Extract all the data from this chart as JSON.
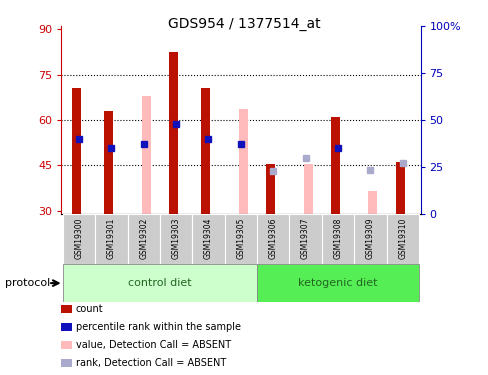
{
  "title": "GDS954 / 1377514_at",
  "samples": [
    "GSM19300",
    "GSM19301",
    "GSM19302",
    "GSM19303",
    "GSM19304",
    "GSM19305",
    "GSM19306",
    "GSM19307",
    "GSM19308",
    "GSM19309",
    "GSM19310"
  ],
  "red_bar_values": [
    70.5,
    63.0,
    null,
    82.5,
    70.5,
    null,
    45.5,
    null,
    61.0,
    null,
    46.0
  ],
  "pink_bar_values": [
    null,
    null,
    68.0,
    null,
    null,
    63.5,
    null,
    45.5,
    null,
    36.5,
    null
  ],
  "blue_square_pct": [
    40.0,
    35.0,
    37.0,
    48.0,
    40.0,
    37.0,
    null,
    null,
    35.0,
    null,
    null
  ],
  "lightblue_square_pct": [
    null,
    null,
    null,
    null,
    null,
    null,
    23.0,
    30.0,
    null,
    23.5,
    27.0
  ],
  "ylim_left": [
    29,
    91
  ],
  "ylim_right": [
    0,
    100
  ],
  "yticks_left": [
    30,
    45,
    60,
    75,
    90
  ],
  "yticks_right": [
    0,
    25,
    50,
    75,
    100
  ],
  "yticklabels_left": [
    "30",
    "45",
    "60",
    "75",
    "90"
  ],
  "yticklabels_right": [
    "0",
    "25",
    "50",
    "75",
    "100%"
  ],
  "left_axis_color": "#cc0000",
  "right_axis_color": "#0000bb",
  "bar_bottom": 29,
  "red_bar_color": "#bb1100",
  "pink_bar_color": "#ffbbbb",
  "blue_square_color": "#1111bb",
  "lightblue_square_color": "#aaaacc",
  "ctrl_color": "#ccffcc",
  "ket_color": "#55ee55",
  "group_label_color": "#226622",
  "dotted_lines": [
    45,
    60,
    75
  ],
  "legend_items": [
    {
      "label": "count",
      "color": "#bb1100"
    },
    {
      "label": "percentile rank within the sample",
      "color": "#1111bb"
    },
    {
      "label": "value, Detection Call = ABSENT",
      "color": "#ffbbbb"
    },
    {
      "label": "rank, Detection Call = ABSENT",
      "color": "#aaaacc"
    }
  ]
}
